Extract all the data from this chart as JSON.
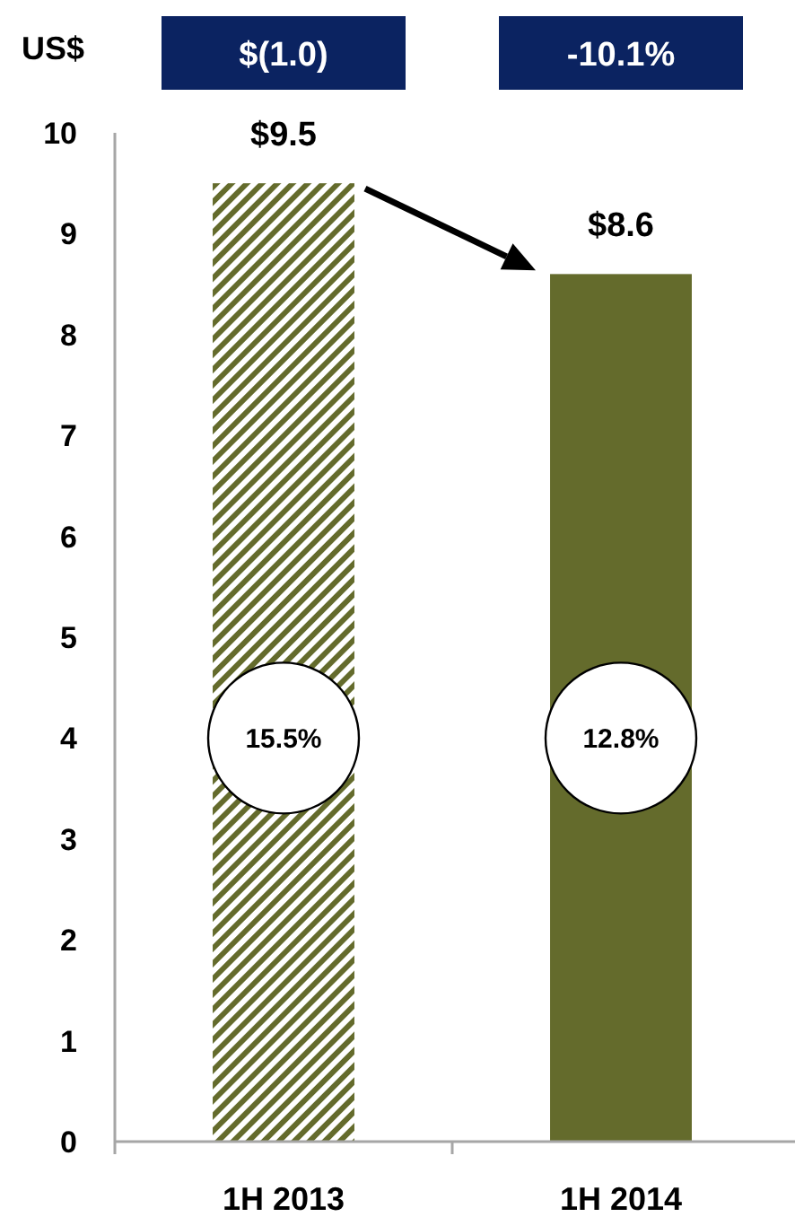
{
  "chart_data": {
    "type": "bar",
    "ylabel": "US$",
    "categories": [
      "1H 2013",
      "1H 2014"
    ],
    "values": [
      9.5,
      8.6
    ],
    "colors": [
      "#646b2c",
      "#646b2c"
    ],
    "value_labels": [
      "$9.5",
      "$8.6"
    ],
    "ylim": [
      0,
      10
    ],
    "yticks": [
      0,
      1,
      2,
      3,
      4,
      5,
      6,
      7,
      8,
      9,
      10
    ],
    "annotations": [
      "$(1.0)",
      "-10.1%",
      "15.5%",
      "12.8%"
    ]
  }
}
